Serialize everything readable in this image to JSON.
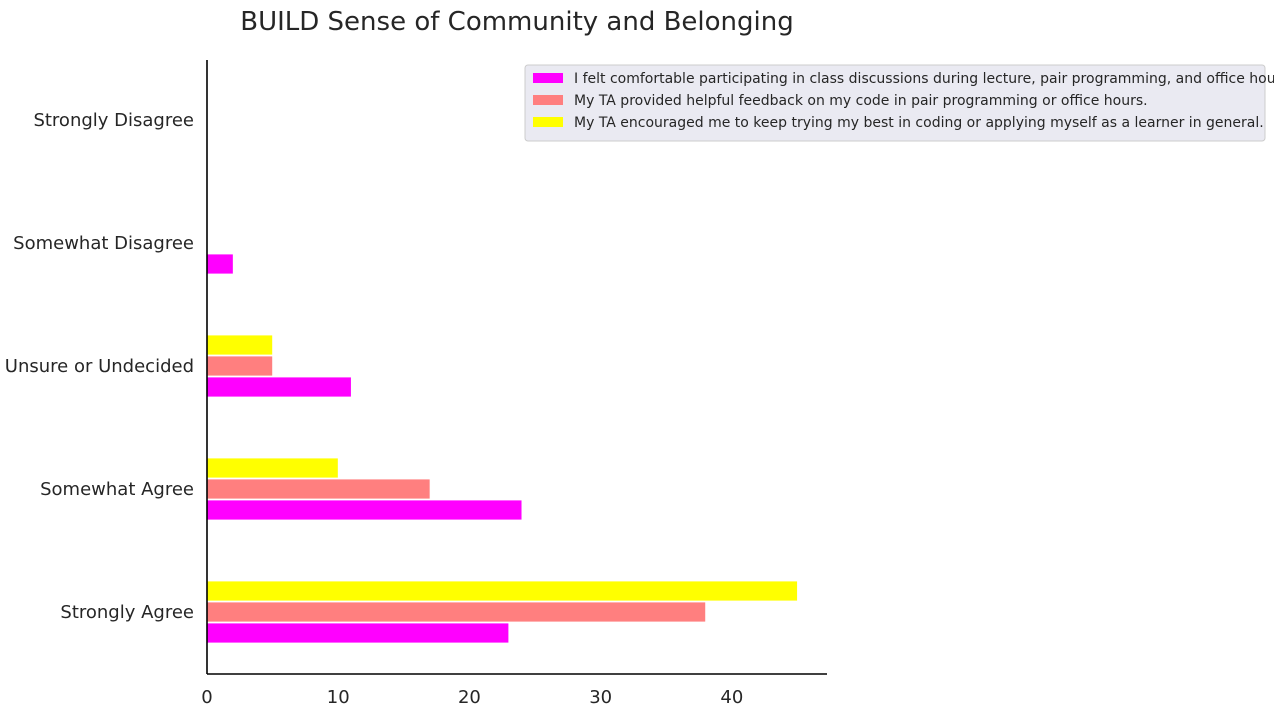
{
  "chart_data": {
    "type": "bar",
    "orientation": "horizontal",
    "title": "BUILD Sense of Community and Belonging",
    "xlabel": "",
    "ylabel": "",
    "categories": [
      "Strongly Agree",
      "Somewhat Agree",
      "Unsure or Undecided",
      "Somewhat Disagree",
      "Strongly Disagree"
    ],
    "series": [
      {
        "name": "I felt comfortable participating in class discussions during lecture, pair programming, and office hours.",
        "color": "#ff00ff",
        "values": [
          23,
          24,
          11,
          2,
          0
        ]
      },
      {
        "name": "My TA provided helpful feedback on my code in pair programming or office hours.",
        "color": "#ff7f7f",
        "values": [
          38,
          17,
          5,
          0,
          0
        ]
      },
      {
        "name": "My TA encouraged me to keep trying my best in coding or applying myself as a learner in general.",
        "color": "#ffff00",
        "values": [
          45,
          10,
          5,
          0,
          0
        ]
      }
    ],
    "xlim": [
      0,
      47.25
    ],
    "xticks": [
      0,
      10,
      20,
      30,
      40
    ],
    "grid": false,
    "legend_position": "top-right"
  }
}
